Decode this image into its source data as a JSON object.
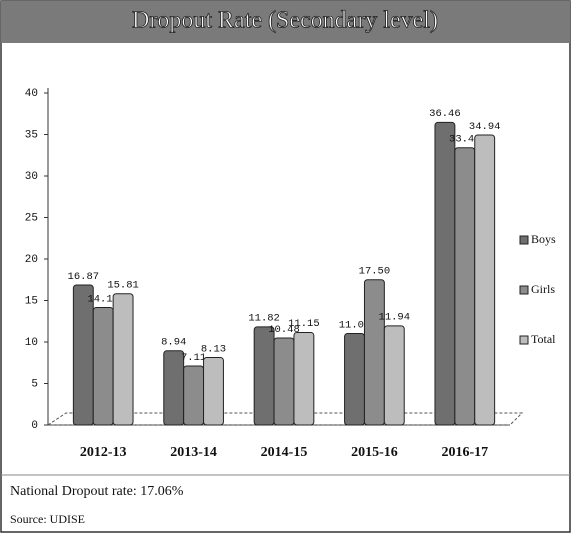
{
  "chart_data": {
    "type": "bar",
    "title": "Dropout Rate (Secondary level)",
    "categories": [
      "2012-13",
      "2013-14",
      "2014-15",
      "2015-16",
      "2016-17"
    ],
    "series": [
      {
        "name": "Boys",
        "color": "#6f6f6f",
        "values": [
          16.87,
          8.94,
          11.82,
          11.02,
          36.46
        ],
        "value_labels": [
          "16.87",
          "8.94",
          "11.82",
          "11.02",
          "36.46"
        ]
      },
      {
        "name": "Girls",
        "color": "#8c8c8c",
        "values": [
          14.15,
          7.11,
          10.48,
          17.5,
          33.4
        ],
        "value_labels": [
          "14.15",
          "7.11",
          "10.48",
          "17.50",
          "33.40"
        ]
      },
      {
        "name": "Total",
        "color": "#bdbdbd",
        "values": [
          15.81,
          8.13,
          11.15,
          11.94,
          34.94
        ],
        "value_labels": [
          "15.81",
          "8.13",
          "11.15",
          "11.94",
          "34.94"
        ]
      }
    ],
    "ylim": [
      0,
      40
    ],
    "yticks": [
      0,
      5,
      10,
      15,
      20,
      25,
      30,
      35,
      40
    ],
    "grid": false,
    "legend": "right",
    "notes": [
      "National Dropout rate: 17.06%",
      "Source: UDISE"
    ]
  }
}
